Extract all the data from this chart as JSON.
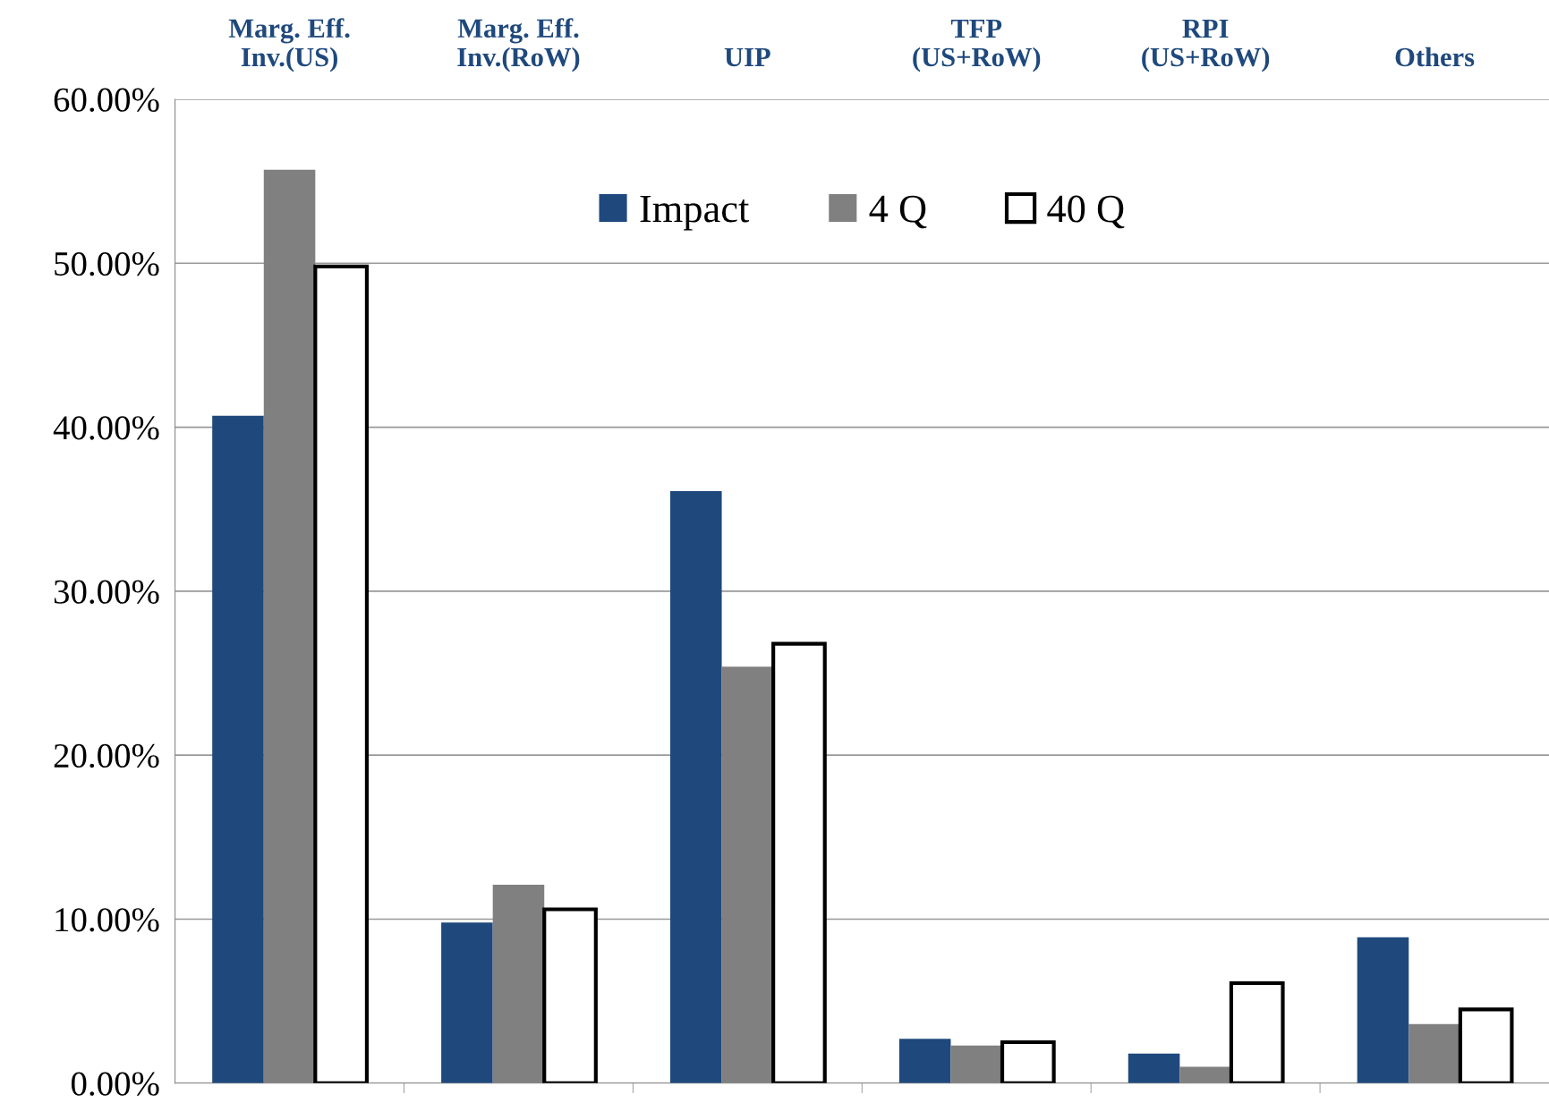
{
  "chart_data": {
    "type": "bar",
    "categories": [
      "Marg. Eff.\nInv.(US)",
      "Marg. Eff.\nInv.(RoW)",
      "UIP",
      "TFP\n(US+RoW)",
      "RPI\n(US+RoW)",
      "Others"
    ],
    "series": [
      {
        "name": "Impact",
        "color": "#1f497d",
        "values": [
          40.7,
          9.8,
          36.1,
          2.7,
          1.8,
          8.9
        ]
      },
      {
        "name": "4 Q",
        "color": "#808080",
        "values": [
          55.7,
          12.1,
          25.4,
          2.3,
          1.0,
          3.6
        ]
      },
      {
        "name": "40 Q",
        "color": "#ffffff",
        "values": [
          49.8,
          10.6,
          26.8,
          2.5,
          6.1,
          4.5
        ]
      }
    ],
    "ylim": [
      0,
      60
    ],
    "yticks": [
      {
        "value": 0,
        "label": "0.00%"
      },
      {
        "value": 10,
        "label": "10.00%"
      },
      {
        "value": 20,
        "label": "20.00%"
      },
      {
        "value": 30,
        "label": "30.00%"
      },
      {
        "value": 40,
        "label": "40.00%"
      },
      {
        "value": 50,
        "label": "50.00%"
      },
      {
        "value": 60,
        "label": "60.00%"
      }
    ],
    "grid": "y",
    "legend": "top"
  }
}
